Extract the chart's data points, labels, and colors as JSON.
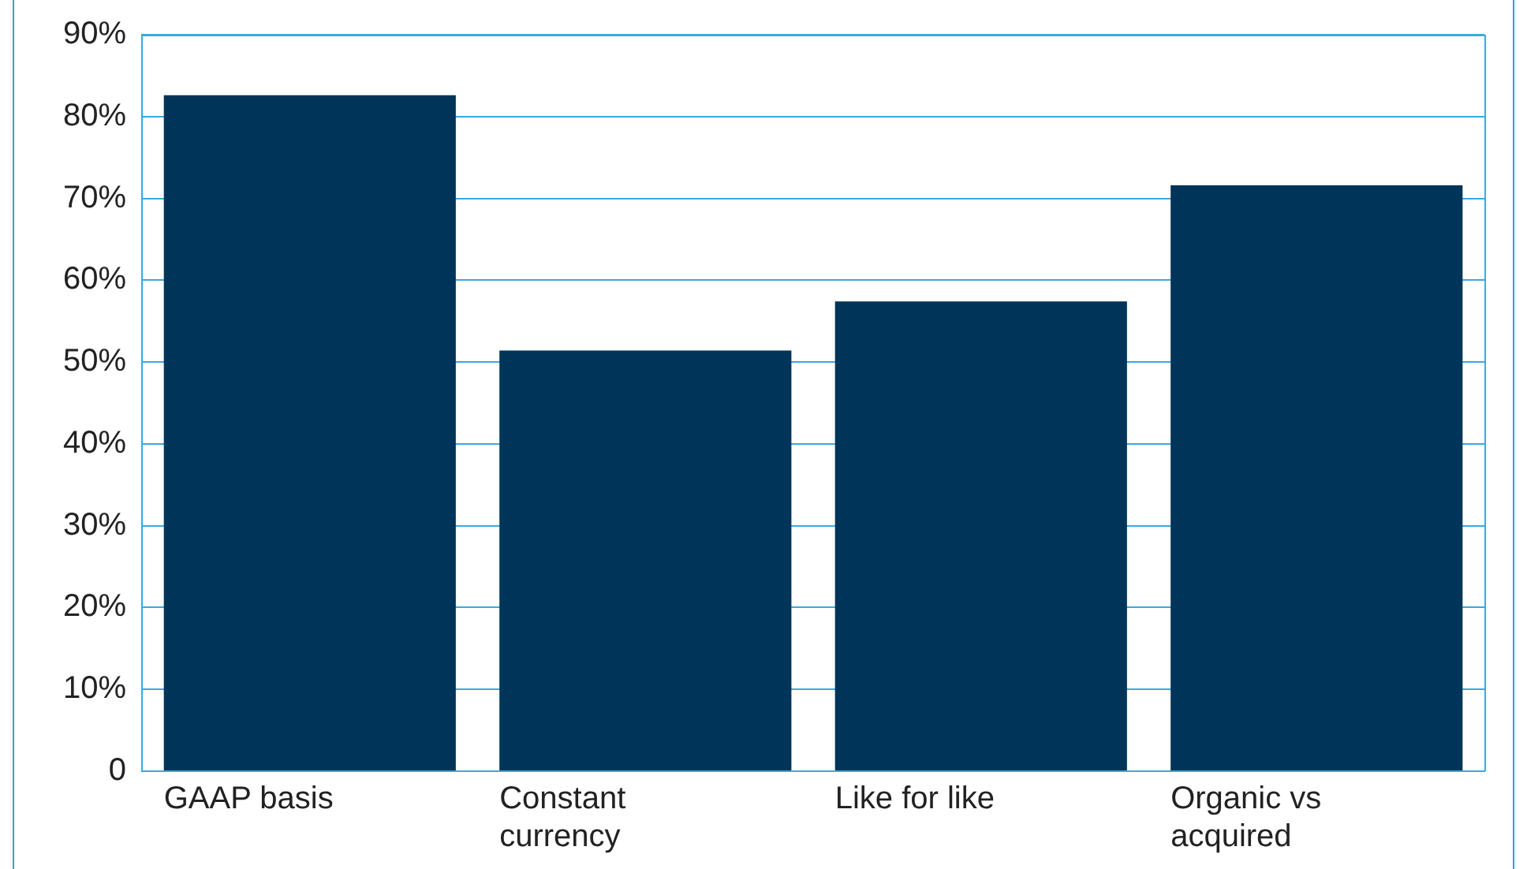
{
  "chart_data": {
    "type": "bar",
    "categories": [
      "GAAP basis",
      "Constant currency",
      "Like for like",
      "Organic vs acquired"
    ],
    "values": [
      82.6,
      51.4,
      57.4,
      71.6
    ],
    "color": "#003459",
    "ylim": [
      0,
      90
    ],
    "yticks": [
      {
        "value": 0,
        "label": "0"
      },
      {
        "value": 10,
        "label": "10%"
      },
      {
        "value": 20,
        "label": "20%"
      },
      {
        "value": 30,
        "label": "30%"
      },
      {
        "value": 40,
        "label": "40%"
      },
      {
        "value": 50,
        "label": "50%"
      },
      {
        "value": 60,
        "label": "60%"
      },
      {
        "value": 70,
        "label": "70%"
      },
      {
        "value": 80,
        "label": "80%"
      },
      {
        "value": 90,
        "label": "90%"
      }
    ],
    "grid": "y",
    "legend": false
  }
}
